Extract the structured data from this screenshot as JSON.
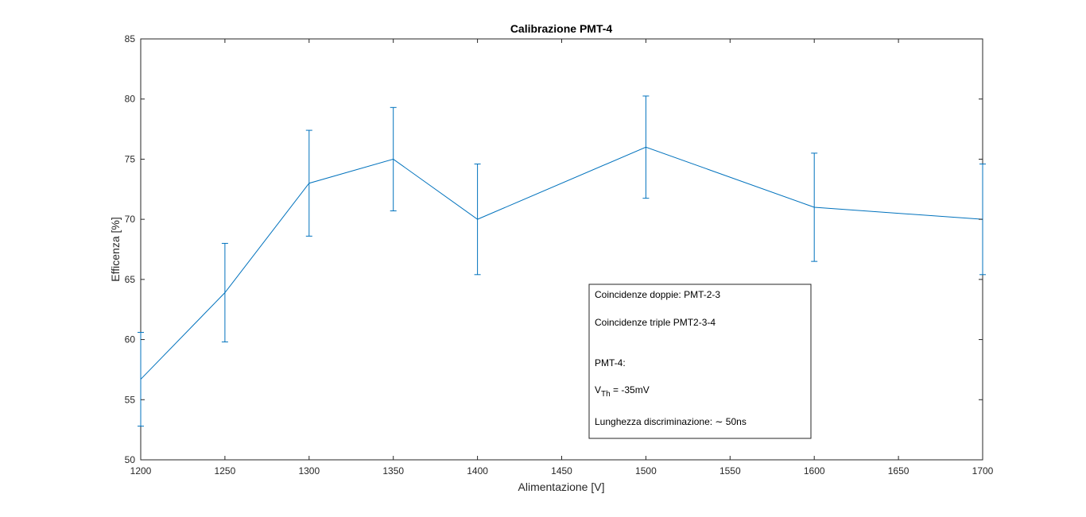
{
  "chart_data": {
    "type": "line",
    "title": "Calibrazione PMT-4",
    "xlabel": "Alimentazione [V]",
    "ylabel": "Efficenza [%]",
    "xlim": [
      1200,
      1700
    ],
    "ylim": [
      50,
      85
    ],
    "xticks": [
      1200,
      1250,
      1300,
      1350,
      1400,
      1450,
      1500,
      1550,
      1600,
      1650,
      1700
    ],
    "yticks": [
      50,
      55,
      60,
      65,
      70,
      75,
      80,
      85
    ],
    "grid": false,
    "series": [
      {
        "color": "#0072bd",
        "x": [
          1200,
          1250,
          1300,
          1350,
          1400,
          1500,
          1600,
          1700
        ],
        "y": [
          56.7,
          63.9,
          73.0,
          75.0,
          70.0,
          76.0,
          71.0,
          70.0
        ],
        "err": [
          3.9,
          4.1,
          4.4,
          4.3,
          4.6,
          4.25,
          4.5,
          4.6
        ]
      }
    ],
    "annotation": {
      "line1": "Coincidenze doppie: PMT-2-3",
      "line2": "Coincidenze triple PMT2-3-4",
      "line3": "PMT-4:",
      "vth_main": "V",
      "vth_sub": "Th",
      "vth_value": " = -35mV",
      "line5": "Lunghezza discriminazione: ∼ 50ns"
    }
  }
}
